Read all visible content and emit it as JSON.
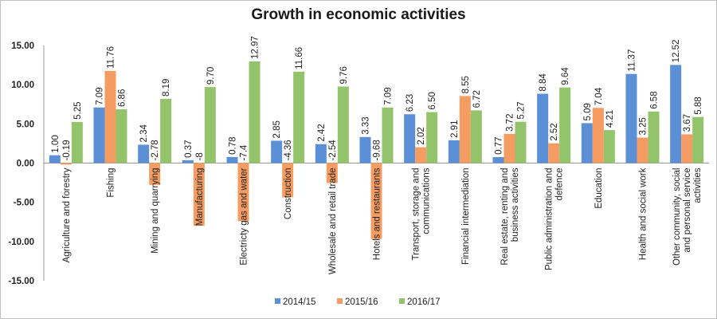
{
  "chart_data": {
    "type": "bar",
    "title": "Growth in economic activities",
    "xlabel": "",
    "ylabel": "",
    "ylim": [
      -15,
      15
    ],
    "yticks": [
      "15.00",
      "10.00",
      "5.00",
      "0.00",
      "-5.00",
      "-10.00",
      "-15.00"
    ],
    "legend_position": "bottom",
    "categories": [
      "Agriculture and forestry",
      "Fishing",
      "Mining and quarrying",
      "Manufacturing",
      "Electricty gas and water",
      "Construction",
      "Wholesale and retail trade",
      "Hotels and restaurants",
      "Transport, storage and communications",
      "Financial intermediation",
      "Real estate, renting and business activities",
      "Public administration and defence",
      "Education",
      "Health and social work",
      "Other community, social and personal service activities"
    ],
    "series": [
      {
        "name": "2014/15",
        "color": "#5b8fd6",
        "values": [
          1.0,
          7.09,
          2.34,
          0.37,
          0.78,
          2.85,
          2.42,
          3.33,
          6.23,
          2.91,
          0.77,
          8.84,
          5.09,
          11.37,
          12.52
        ],
        "labels": [
          "1.00",
          "7.09",
          "2.34",
          "0.37",
          "0.78",
          "2.85",
          "2.42",
          "3.33",
          "6.23",
          "2.91",
          "0.77",
          "8.84",
          "5.09",
          "11.37",
          "12.52"
        ]
      },
      {
        "name": "2015/16",
        "color": "#f59c63",
        "values": [
          -0.19,
          11.76,
          -2.78,
          -8,
          -7.4,
          -4.36,
          -2.54,
          -9.68,
          2.02,
          8.55,
          3.72,
          2.52,
          7.04,
          3.25,
          3.67
        ],
        "labels": [
          "-0.19",
          "11.76",
          "-2.78",
          "-8",
          "-7.4",
          "-4.36",
          "-2.54",
          "-9.68",
          "2.02",
          "8.55",
          "3.72",
          "2.52",
          "7.04",
          "3.25",
          "3.67"
        ]
      },
      {
        "name": "2016/17",
        "color": "#93c36a",
        "values": [
          5.25,
          6.86,
          8.19,
          9.7,
          12.97,
          11.66,
          9.76,
          7.09,
          6.5,
          6.72,
          5.27,
          9.64,
          4.21,
          6.58,
          5.88
        ],
        "labels": [
          "5.25",
          "6.86",
          "8.19",
          "9.70",
          "12.97",
          "11.66",
          "9.76",
          "7.09",
          "6.50",
          "6.72",
          "5.27",
          "9.64",
          "4.21",
          "6.58",
          "5.88"
        ]
      }
    ],
    "category_lines": [
      [
        "Agriculture and forestry"
      ],
      [
        "Fishing"
      ],
      [
        "Mining and quarrying"
      ],
      [
        "Manufacturing"
      ],
      [
        "Electricty gas and water"
      ],
      [
        "Construction"
      ],
      [
        "Wholesale and retail trade"
      ],
      [
        "Hotels and restaurants"
      ],
      [
        "Transport, storage and",
        "communications"
      ],
      [
        "Financial intermediation"
      ],
      [
        "Real estate, renting and",
        "business activities"
      ],
      [
        "Public administration and",
        "defence"
      ],
      [
        "Education"
      ],
      [
        "Health and social work"
      ],
      [
        "Other community, social",
        "and personal service",
        "activities"
      ]
    ]
  }
}
